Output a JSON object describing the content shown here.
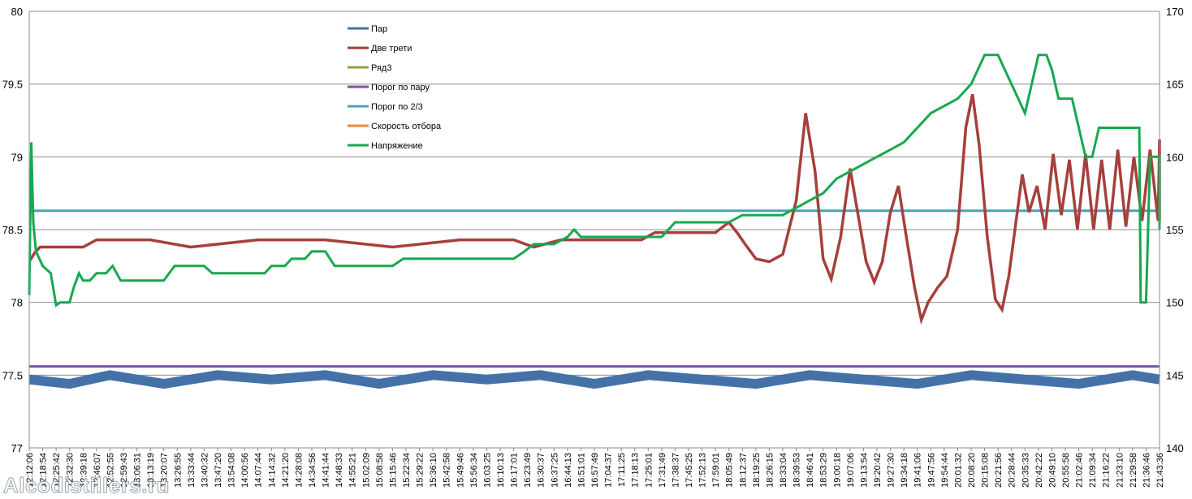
{
  "chart_data": {
    "type": "line",
    "title": "",
    "left_axis": {
      "min": 77,
      "max": 80,
      "ticks": [
        "77",
        "77.5",
        "78",
        "78.5",
        "79",
        "79.5",
        "80"
      ]
    },
    "right_axis": {
      "min": 140,
      "max": 170,
      "ticks": [
        "140",
        "145",
        "150",
        "155",
        "160",
        "165",
        "170"
      ]
    },
    "grid": true,
    "legend_position": "top-center",
    "x_tick_labels": [
      "12:12:06",
      "12:18:54",
      "12:25:42",
      "12:32:30",
      "12:39:18",
      "12:46:07",
      "12:52:55",
      "12:59:43",
      "13:06:31",
      "13:13:19",
      "13:20:07",
      "13:26:55",
      "13:33:44",
      "13:40:32",
      "13:47:20",
      "13:54:08",
      "14:00:56",
      "14:07:44",
      "14:14:32",
      "14:21:20",
      "14:28:08",
      "14:34:56",
      "14:41:44",
      "14:48:33",
      "14:55:21",
      "15:02:09",
      "15:08:58",
      "15:15:46",
      "15:22:34",
      "15:29:22",
      "15:36:10",
      "15:42:58",
      "15:49:46",
      "15:56:34",
      "16:03:25",
      "16:10:13",
      "16:17:01",
      "16:23:49",
      "16:30:37",
      "16:37:25",
      "16:44:13",
      "16:51:01",
      "16:57:49",
      "17:04:37",
      "17:11:25",
      "17:18:13",
      "17:25:01",
      "17:31:49",
      "17:38:37",
      "17:45:25",
      "17:52:13",
      "17:59:01",
      "18:05:49",
      "18:12:37",
      "18:19:25",
      "18:26:15",
      "18:33:04",
      "18:39:53",
      "18:46:41",
      "18:53:29",
      "19:00:18",
      "19:07:06",
      "19:13:54",
      "19:20:42",
      "19:27:30",
      "19:34:18",
      "19:41:06",
      "19:47:56",
      "19:54:44",
      "20:01:32",
      "20:08:20",
      "20:15:08",
      "20:21:56",
      "20:28:44",
      "20:35:33",
      "20:42:22",
      "20:49:10",
      "20:55:58",
      "21:02:46",
      "21:09:34",
      "21:16:22",
      "21:23:10",
      "21:29:58",
      "21:36:46",
      "21:43:36"
    ],
    "series": [
      {
        "name": "Пар",
        "color": "#4472a8",
        "axis": "left",
        "points": [
          [
            0,
            77.47
          ],
          [
            3,
            77.44
          ],
          [
            6,
            77.5
          ],
          [
            10,
            77.44
          ],
          [
            14,
            77.5
          ],
          [
            18,
            77.47
          ],
          [
            22,
            77.5
          ],
          [
            26,
            77.44
          ],
          [
            30,
            77.5
          ],
          [
            34,
            77.47
          ],
          [
            38,
            77.5
          ],
          [
            42,
            77.44
          ],
          [
            46,
            77.5
          ],
          [
            50,
            77.47
          ],
          [
            54,
            77.44
          ],
          [
            58,
            77.5
          ],
          [
            62,
            77.47
          ],
          [
            66,
            77.44
          ],
          [
            70,
            77.5
          ],
          [
            74,
            77.47
          ],
          [
            78,
            77.44
          ],
          [
            82,
            77.5
          ],
          [
            85,
            77.47
          ]
        ]
      },
      {
        "name": "Две трети",
        "color": "#a5403c",
        "axis": "left",
        "points": [
          [
            0,
            78.28
          ],
          [
            0.4,
            78.34
          ],
          [
            0.8,
            78.38
          ],
          [
            1.6,
            78.38
          ],
          [
            4,
            78.38
          ],
          [
            5,
            78.43
          ],
          [
            9,
            78.43
          ],
          [
            12,
            78.38
          ],
          [
            17,
            78.43
          ],
          [
            22,
            78.43
          ],
          [
            27,
            78.38
          ],
          [
            32,
            78.43
          ],
          [
            36,
            78.43
          ],
          [
            37.5,
            78.38
          ],
          [
            39.5,
            78.43
          ],
          [
            45.5,
            78.43
          ],
          [
            46.5,
            78.48
          ],
          [
            51,
            78.48
          ],
          [
            52,
            78.55
          ],
          [
            52.6,
            78.48
          ],
          [
            53.2,
            78.4
          ],
          [
            54,
            78.3
          ],
          [
            55,
            78.28
          ],
          [
            56,
            78.33
          ],
          [
            57,
            78.7
          ],
          [
            57.7,
            79.3
          ],
          [
            58.4,
            78.9
          ],
          [
            59,
            78.3
          ],
          [
            59.6,
            78.16
          ],
          [
            60.3,
            78.45
          ],
          [
            61,
            78.92
          ],
          [
            61.6,
            78.6
          ],
          [
            62.2,
            78.28
          ],
          [
            62.8,
            78.14
          ],
          [
            63.4,
            78.28
          ],
          [
            64,
            78.62
          ],
          [
            64.6,
            78.8
          ],
          [
            65.2,
            78.44
          ],
          [
            65.8,
            78.1
          ],
          [
            66.3,
            77.88
          ],
          [
            66.8,
            78.0
          ],
          [
            67.5,
            78.1
          ],
          [
            68.2,
            78.18
          ],
          [
            69,
            78.5
          ],
          [
            69.6,
            79.2
          ],
          [
            70.1,
            79.43
          ],
          [
            70.6,
            79.08
          ],
          [
            71.2,
            78.45
          ],
          [
            71.8,
            78.02
          ],
          [
            72.3,
            77.95
          ],
          [
            72.8,
            78.18
          ],
          [
            73.4,
            78.6
          ],
          [
            73.8,
            78.88
          ],
          [
            74.3,
            78.62
          ],
          [
            74.9,
            78.8
          ],
          [
            75.5,
            78.5
          ],
          [
            76.1,
            79.02
          ],
          [
            76.7,
            78.6
          ],
          [
            77.3,
            78.98
          ],
          [
            77.9,
            78.5
          ],
          [
            78.5,
            79.02
          ],
          [
            79.1,
            78.5
          ],
          [
            79.7,
            78.98
          ],
          [
            80.3,
            78.5
          ],
          [
            80.9,
            79.05
          ],
          [
            81.5,
            78.52
          ],
          [
            82.1,
            79.0
          ],
          [
            82.7,
            78.56
          ],
          [
            83.3,
            79.05
          ],
          [
            83.9,
            78.56
          ],
          [
            84.5,
            79.12
          ],
          [
            85,
            78.56
          ]
        ]
      },
      {
        "name": "Ряд3",
        "color": "#8aa63c",
        "axis": "left",
        "points": []
      },
      {
        "name": "Порог по пару",
        "color": "#7a56a0",
        "axis": "left",
        "points": [
          [
            0,
            77.56
          ],
          [
            85,
            77.56
          ]
        ]
      },
      {
        "name": "Порог по 2/3",
        "color": "#4aa0b6",
        "axis": "left",
        "points": [
          [
            0,
            78.63
          ],
          [
            85,
            78.63
          ]
        ]
      },
      {
        "name": "Скорость отбора",
        "color": "#ef8833",
        "axis": "right",
        "points": []
      },
      {
        "name": "Напряжение",
        "color": "#17a84f",
        "axis": "right",
        "points": [
          [
            0,
            150.5
          ],
          [
            0.15,
            161.0
          ],
          [
            0.3,
            155.5
          ],
          [
            0.5,
            153.5
          ],
          [
            1.0,
            152.5
          ],
          [
            1.6,
            152.0
          ],
          [
            2.0,
            149.8
          ],
          [
            2.3,
            150.0
          ],
          [
            3.0,
            150.0
          ],
          [
            3.3,
            151.0
          ],
          [
            3.7,
            152.0
          ],
          [
            4.0,
            151.5
          ],
          [
            4.5,
            151.5
          ],
          [
            5.0,
            152.0
          ],
          [
            5.7,
            152.0
          ],
          [
            6.2,
            152.5
          ],
          [
            6.8,
            151.5
          ],
          [
            7.3,
            151.5
          ],
          [
            10.0,
            151.5
          ],
          [
            10.4,
            152.0
          ],
          [
            10.8,
            152.5
          ],
          [
            11.5,
            152.5
          ],
          [
            13.0,
            152.5
          ],
          [
            13.6,
            152.0
          ],
          [
            15.0,
            152.0
          ],
          [
            17.5,
            152.0
          ],
          [
            18.0,
            152.5
          ],
          [
            19.0,
            152.5
          ],
          [
            19.5,
            153.0
          ],
          [
            20.5,
            153.0
          ],
          [
            21.0,
            153.5
          ],
          [
            22.0,
            153.5
          ],
          [
            22.7,
            152.5
          ],
          [
            24.5,
            152.5
          ],
          [
            25.0,
            152.5
          ],
          [
            27.0,
            152.5
          ],
          [
            27.8,
            153.0
          ],
          [
            30.0,
            153.0
          ],
          [
            36.0,
            153.0
          ],
          [
            36.8,
            153.5
          ],
          [
            37.5,
            154.0
          ],
          [
            39.0,
            154.0
          ],
          [
            40.0,
            154.5
          ],
          [
            40.5,
            155.0
          ],
          [
            41.0,
            154.5
          ],
          [
            47.0,
            154.5
          ],
          [
            48.0,
            155.5
          ],
          [
            50.0,
            155.5
          ],
          [
            52.0,
            155.5
          ],
          [
            53.0,
            156.0
          ],
          [
            56.0,
            156.0
          ],
          [
            57.0,
            156.5
          ],
          [
            58.0,
            157.0
          ],
          [
            59.0,
            157.5
          ],
          [
            60.0,
            158.5
          ],
          [
            61.0,
            159.0
          ],
          [
            62.0,
            159.5
          ],
          [
            63.0,
            160.0
          ],
          [
            64.0,
            160.5
          ],
          [
            65.0,
            161.0
          ],
          [
            66.0,
            162.0
          ],
          [
            67.0,
            163.0
          ],
          [
            68.0,
            163.5
          ],
          [
            69.0,
            164.0
          ],
          [
            70.0,
            165.0
          ],
          [
            70.5,
            166.0
          ],
          [
            71.0,
            167.0
          ],
          [
            72.0,
            167.0
          ],
          [
            72.5,
            166.0
          ],
          [
            73.0,
            165.0
          ],
          [
            74.0,
            163.0
          ],
          [
            74.5,
            165.0
          ],
          [
            75.0,
            167.0
          ],
          [
            75.6,
            167.0
          ],
          [
            76.0,
            166.0
          ],
          [
            76.5,
            164.0
          ],
          [
            77.5,
            164.0
          ],
          [
            78.0,
            162.0
          ],
          [
            78.5,
            160.0
          ],
          [
            79.0,
            160.0
          ],
          [
            79.5,
            162.0
          ],
          [
            82.5,
            162.0
          ],
          [
            82.6,
            150.0
          ],
          [
            83.0,
            150.0
          ],
          [
            83.3,
            160.0
          ],
          [
            85.5,
            160.0
          ],
          [
            85.8,
            155.0
          ],
          [
            90,
            155.0
          ],
          [
            99,
            155.0
          ]
        ]
      }
    ]
  },
  "watermark_text": "Alcodistillers.ru"
}
